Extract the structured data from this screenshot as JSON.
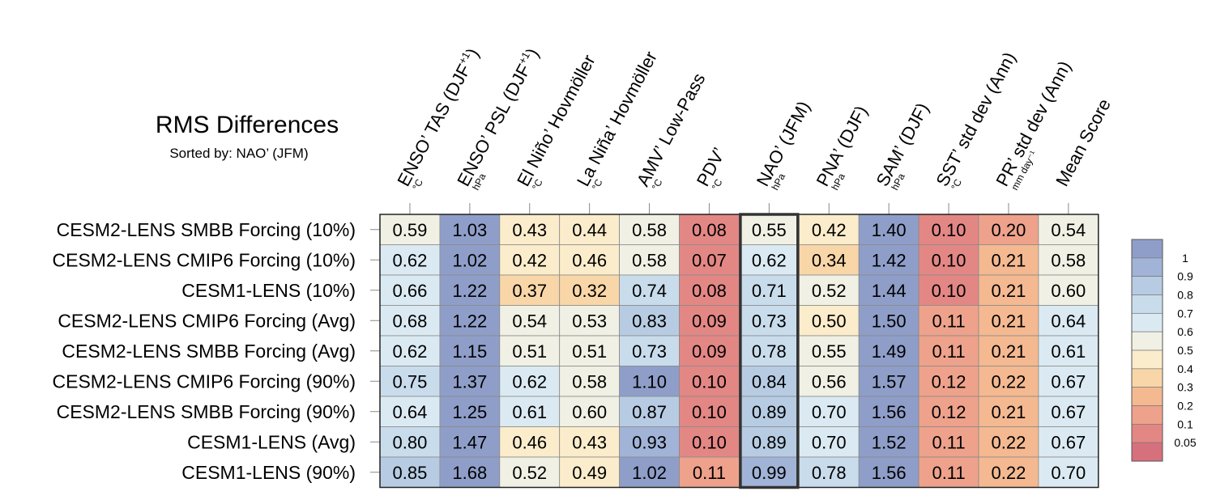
{
  "chart_data": {
    "type": "heatmap",
    "title": "RMS Differences",
    "subtitle": "Sorted by: NAO’ (JFM)",
    "columns": [
      {
        "label": "ENSO’ TAS (DJF+1)",
        "base": "ENSO’ TAS (DJF",
        "sup": "+1",
        "close": ")",
        "unit": "°C"
      },
      {
        "label": "ENSO’ PSL (DJF+1)",
        "base": "ENSO’ PSL (DJF",
        "sup": "+1",
        "close": ")",
        "unit": "hPa"
      },
      {
        "label": "El Niño’ Hovmöller",
        "base": "El Niño’ Hovmöller",
        "sup": "",
        "close": "",
        "unit": "°C"
      },
      {
        "label": "La Niña’ Hovmöller",
        "base": "La Niña’ Hovmöller",
        "sup": "",
        "close": "",
        "unit": "°C"
      },
      {
        "label": "AMV’ Low-Pass",
        "base": "AMV’ Low-Pass",
        "sup": "",
        "close": "",
        "unit": "°C"
      },
      {
        "label": "PDV’",
        "base": "PDV’",
        "sup": "",
        "close": "",
        "unit": "°C"
      },
      {
        "label": "NAO’ (JFM)",
        "base": "NAO’ (JFM)",
        "sup": "",
        "close": "",
        "unit": "hPa"
      },
      {
        "label": "PNA’ (DJF)",
        "base": "PNA’ (DJF)",
        "sup": "",
        "close": "",
        "unit": "hPa"
      },
      {
        "label": "SAM’ (DJF)",
        "base": "SAM’ (DJF)",
        "sup": "",
        "close": "",
        "unit": "hPa"
      },
      {
        "label": "SST’ std dev (Ann)",
        "base": "SST’ std dev (Ann)",
        "sup": "",
        "close": "",
        "unit": "°C"
      },
      {
        "label": "PR’ std dev (Ann)",
        "base": "PR’ std dev (Ann)",
        "sup": "",
        "close": "",
        "unit": "mm day⁻¹"
      },
      {
        "label": "Mean Score",
        "base": "Mean Score",
        "sup": "",
        "close": "",
        "unit": ""
      }
    ],
    "rows": [
      "CESM2-LENS SMBB Forcing (10%)",
      "CESM2-LENS CMIP6 Forcing (10%)",
      "CESM1-LENS (10%)",
      "CESM2-LENS CMIP6 Forcing (Avg)",
      "CESM2-LENS SMBB Forcing (Avg)",
      "CESM2-LENS CMIP6 Forcing (90%)",
      "CESM2-LENS SMBB Forcing (90%)",
      "CESM1-LENS (Avg)",
      "CESM1-LENS (90%)"
    ],
    "values": [
      [
        "0.59",
        "1.03",
        "0.43",
        "0.44",
        "0.58",
        "0.08",
        "0.55",
        "0.42",
        "1.40",
        "0.10",
        "0.20",
        "0.54"
      ],
      [
        "0.62",
        "1.02",
        "0.42",
        "0.46",
        "0.58",
        "0.07",
        "0.62",
        "0.34",
        "1.42",
        "0.10",
        "0.21",
        "0.58"
      ],
      [
        "0.66",
        "1.22",
        "0.37",
        "0.32",
        "0.74",
        "0.08",
        "0.71",
        "0.52",
        "1.44",
        "0.10",
        "0.21",
        "0.60"
      ],
      [
        "0.68",
        "1.22",
        "0.54",
        "0.53",
        "0.83",
        "0.09",
        "0.73",
        "0.50",
        "1.50",
        "0.11",
        "0.21",
        "0.64"
      ],
      [
        "0.62",
        "1.15",
        "0.51",
        "0.51",
        "0.73",
        "0.09",
        "0.78",
        "0.55",
        "1.49",
        "0.11",
        "0.21",
        "0.61"
      ],
      [
        "0.75",
        "1.37",
        "0.62",
        "0.58",
        "1.10",
        "0.10",
        "0.84",
        "0.56",
        "1.57",
        "0.12",
        "0.22",
        "0.67"
      ],
      [
        "0.64",
        "1.25",
        "0.61",
        "0.60",
        "0.87",
        "0.10",
        "0.89",
        "0.70",
        "1.56",
        "0.12",
        "0.21",
        "0.67"
      ],
      [
        "0.80",
        "1.47",
        "0.46",
        "0.43",
        "0.93",
        "0.10",
        "0.89",
        "0.70",
        "1.52",
        "0.11",
        "0.22",
        "0.67"
      ],
      [
        "0.85",
        "1.68",
        "0.52",
        "0.49",
        "1.02",
        "0.11",
        "0.99",
        "0.78",
        "1.56",
        "0.11",
        "0.22",
        "0.70"
      ]
    ],
    "highlighted_column": "NAO’ (JFM)",
    "colorbar": {
      "labels": [
        "1",
        "0.9",
        "0.8",
        "0.7",
        "0.6",
        "0.5",
        "0.4",
        "0.3",
        "0.2",
        "0.1",
        "0.05"
      ],
      "colors": [
        "#8f9ec9",
        "#a1b3d7",
        "#b7cce3",
        "#c9dcec",
        "#dbeaf2",
        "#f0f1e4",
        "#fbeccb",
        "#f9d6a8",
        "#f4b991",
        "#eea28b",
        "#e38785",
        "#d7707d"
      ]
    }
  }
}
